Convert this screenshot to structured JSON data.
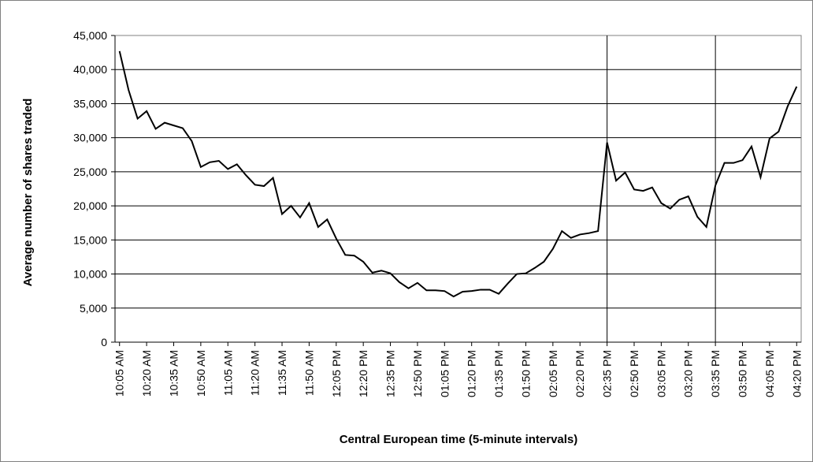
{
  "chart_data": {
    "type": "line",
    "y_label": "Average number of shares traded",
    "x_label": "Central European time (5-minute intervals)",
    "categories": [
      "10:05 AM",
      null,
      null,
      "10:20 AM",
      null,
      null,
      "10:35 AM",
      null,
      null,
      "10:50 AM",
      null,
      null,
      "11:05 AM",
      null,
      null,
      "11:20 AM",
      null,
      null,
      "11:35 AM",
      null,
      null,
      "11:50 AM",
      null,
      null,
      "12:05 PM",
      null,
      null,
      "12:20 PM",
      null,
      null,
      "12:35 PM",
      null,
      null,
      "12:50 PM",
      null,
      null,
      "01:05 PM",
      null,
      null,
      "01:20 PM",
      null,
      null,
      "01:35 PM",
      null,
      null,
      "01:50 PM",
      null,
      null,
      "02:05 PM",
      null,
      null,
      "02:20 PM",
      null,
      null,
      "02:35 PM",
      null,
      null,
      "02:50 PM",
      null,
      null,
      "03:05 PM",
      null,
      null,
      "03:20 PM",
      null,
      null,
      "03:35 PM",
      null,
      null,
      "03:50 PM",
      null,
      null,
      "04:05 PM",
      null,
      null,
      "04:20 PM"
    ],
    "values": [
      42700,
      37000,
      32800,
      33900,
      31300,
      32200,
      31800,
      31400,
      29500,
      25700,
      26400,
      26600,
      25400,
      26100,
      24500,
      23100,
      22900,
      24100,
      18800,
      20000,
      18300,
      20400,
      16900,
      18000,
      15200,
      12800,
      12700,
      11800,
      10200,
      10500,
      10100,
      8800,
      7900,
      8700,
      7600,
      7600,
      7500,
      6700,
      7400,
      7500,
      7700,
      7700,
      7100,
      8600,
      10000,
      10100,
      10900,
      11800,
      13700,
      16300,
      15300,
      15800,
      16000,
      16300,
      29300,
      23700,
      24900,
      22400,
      22200,
      22700,
      20400,
      19600,
      20900,
      21400,
      18400,
      16900,
      23000,
      26300,
      26300,
      26700,
      28700,
      24200,
      29900,
      30900,
      34600,
      37500
    ],
    "color": "#000000",
    "reference_lines": [
      "02:35 PM",
      "03:35 PM"
    ],
    "ylim": [
      0,
      45000
    ],
    "yticks": [
      0,
      {
        "value": 5000,
        "label": "5,000"
      },
      {
        "value": 10000,
        "label": "10,000"
      },
      {
        "value": 15000,
        "label": "15,000"
      },
      {
        "value": 20000,
        "label": "20,000"
      },
      {
        "value": 25000,
        "label": "25,000"
      },
      {
        "value": 30000,
        "label": "30,000"
      },
      {
        "value": 35000,
        "label": "35,000"
      },
      {
        "value": 40000,
        "label": "40,000"
      },
      {
        "value": 45000,
        "label": "45,000"
      }
    ],
    "grid": true
  }
}
